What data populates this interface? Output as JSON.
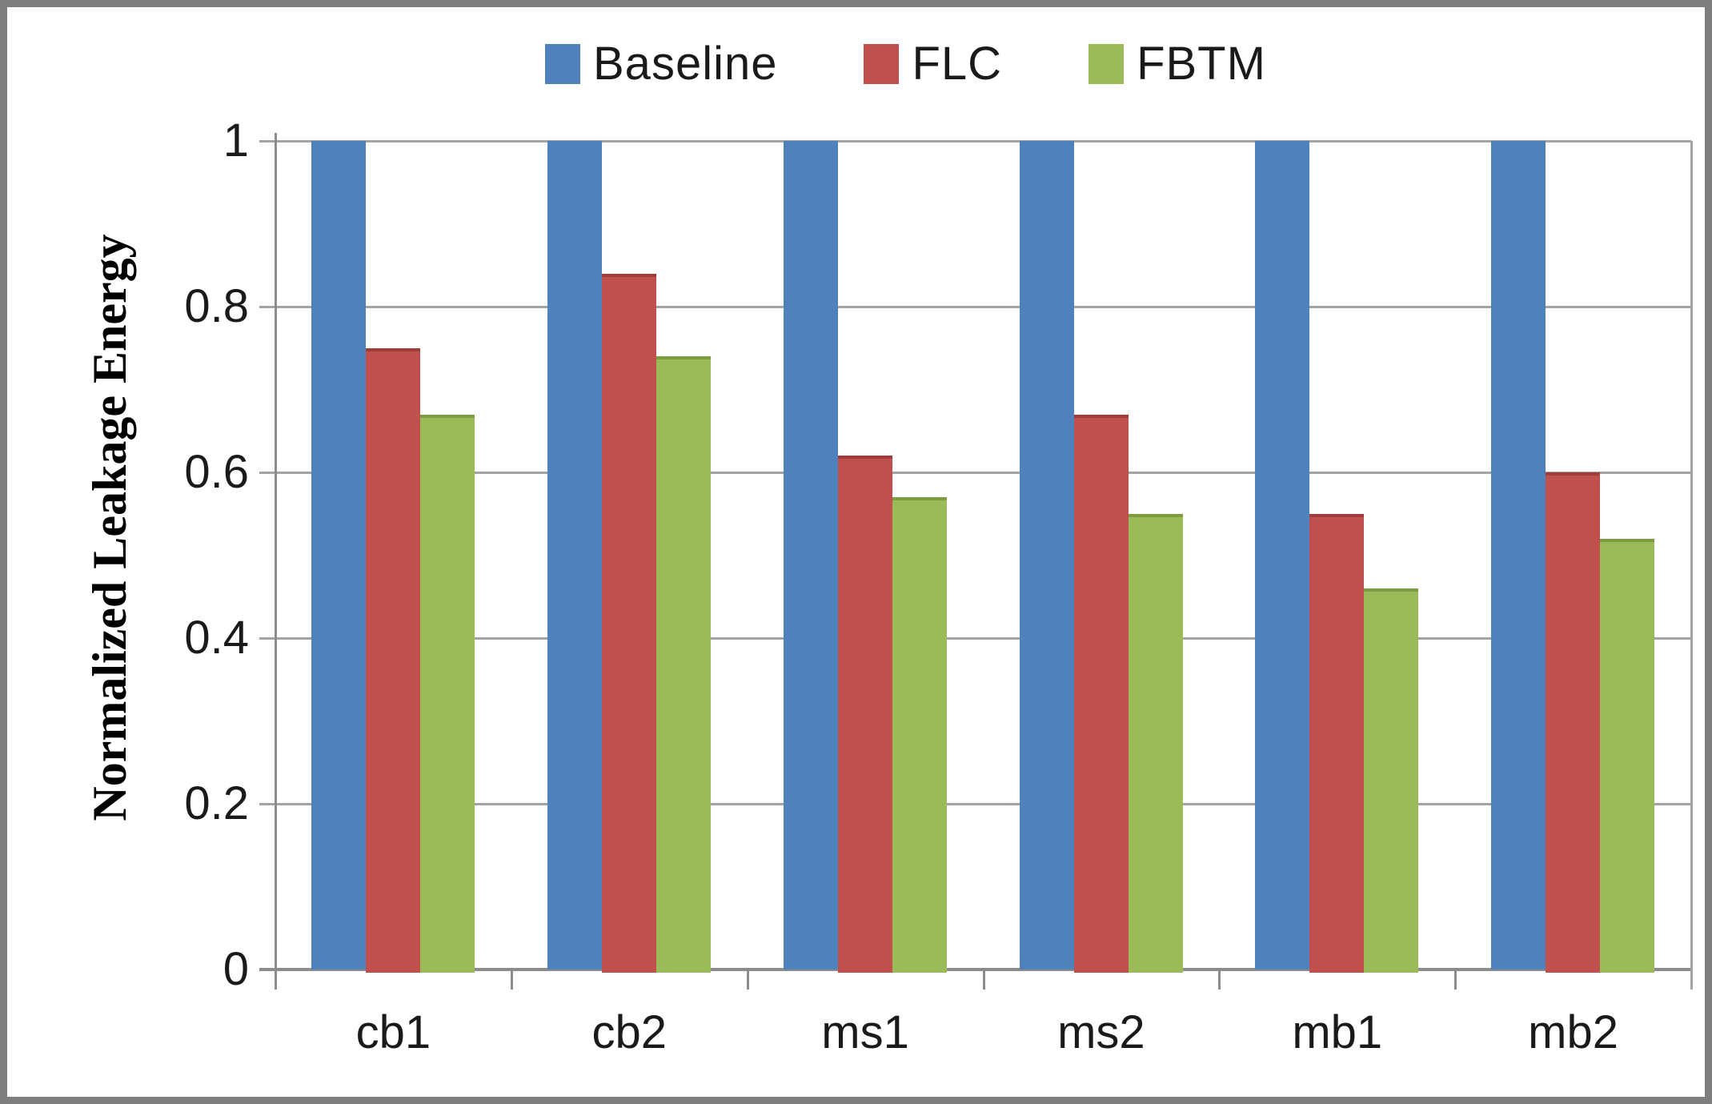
{
  "chart_data": {
    "type": "bar",
    "title": "",
    "xlabel": "",
    "ylabel": "Normalized Leakage Energy",
    "categories": [
      "cb1",
      "cb2",
      "ms1",
      "ms2",
      "mb1",
      "mb2"
    ],
    "series": [
      {
        "name": "Baseline",
        "color": "#4F81BD",
        "edge_color": "#3E6B9E",
        "values": [
          1,
          1,
          1,
          1,
          1,
          1
        ]
      },
      {
        "name": "FLC",
        "color": "#C0504D",
        "edge_color": "#A03D3B",
        "values": [
          0.75,
          0.84,
          0.62,
          0.67,
          0.55,
          0.6
        ]
      },
      {
        "name": "FBTM",
        "color": "#9BBB59",
        "edge_color": "#7E9C42",
        "values": [
          0.67,
          0.74,
          0.57,
          0.55,
          0.46,
          0.52
        ]
      }
    ],
    "ylim": [
      0,
      1
    ],
    "yticks": [
      0,
      0.2,
      0.4,
      0.6,
      0.8,
      1
    ],
    "ytick_labels": [
      "0",
      "0.2",
      "0.4",
      "0.6",
      "0.8",
      "1"
    ],
    "grid": "horizontal-only",
    "legend_position": "top-center"
  },
  "colors": {
    "gridline": "#a3a3a3",
    "axis": "#8c8c8c",
    "frame": "#7e7e7e",
    "background": "#ffffff",
    "text": "#1a1a1a"
  }
}
